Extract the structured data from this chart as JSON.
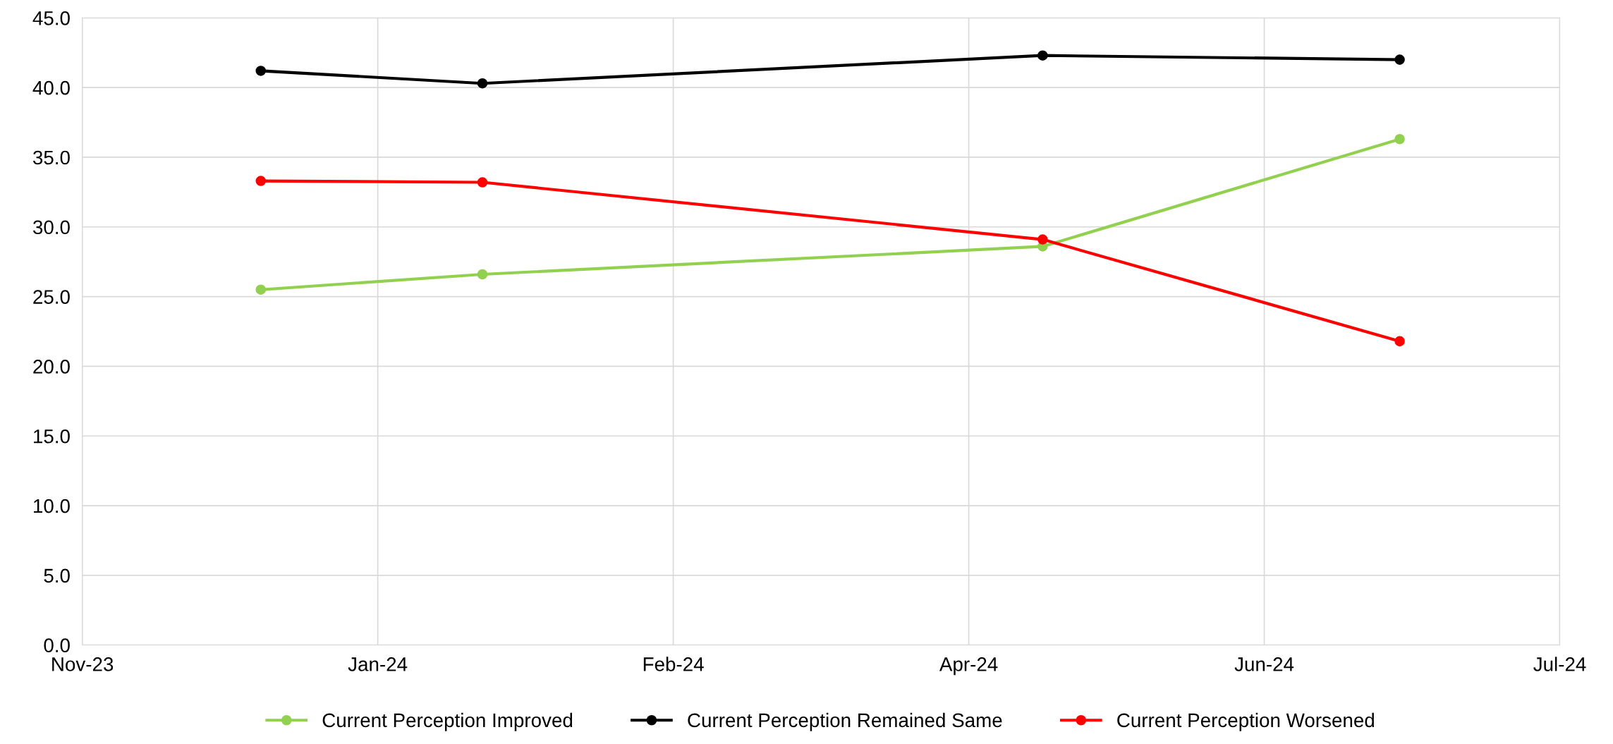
{
  "chart_data": {
    "type": "line",
    "x": [
      "2023-12-22",
      "2024-01-27",
      "2024-04-27",
      "2024-06-24"
    ],
    "series": [
      {
        "name": "Current Perception Improved",
        "color": "#92d050",
        "values": [
          25.5,
          26.6,
          28.6,
          36.3
        ]
      },
      {
        "name": "Current Perception Remained Same",
        "color": "#000000",
        "values": [
          41.2,
          40.3,
          42.3,
          42.0
        ]
      },
      {
        "name": "Current Perception Worsened",
        "color": "#ff0000",
        "values": [
          33.3,
          33.2,
          29.1,
          21.8
        ]
      }
    ],
    "xlim": [
      "2023-11-23",
      "2024-07-20"
    ],
    "xticks": [
      {
        "value": "2023-11-23",
        "label": "Nov-23"
      },
      {
        "value": "2024-01-10",
        "label": "Jan-24"
      },
      {
        "value": "2024-02-27",
        "label": "Feb-24"
      },
      {
        "value": "2024-04-15",
        "label": "Apr-24"
      },
      {
        "value": "2024-06-02",
        "label": "Jun-24"
      },
      {
        "value": "2024-07-20",
        "label": "Jul-24"
      }
    ],
    "ylim": [
      0,
      45
    ],
    "yticks": [
      {
        "value": 0,
        "label": "0.0"
      },
      {
        "value": 5,
        "label": "5.0"
      },
      {
        "value": 10,
        "label": "10.0"
      },
      {
        "value": 15,
        "label": "15.0"
      },
      {
        "value": 20,
        "label": "20.0"
      },
      {
        "value": 25,
        "label": "25.0"
      },
      {
        "value": 30,
        "label": "30.0"
      },
      {
        "value": 35,
        "label": "35.0"
      },
      {
        "value": 40,
        "label": "40.0"
      },
      {
        "value": 45,
        "label": "45.0"
      }
    ],
    "grid": true,
    "legend": "bottom",
    "marker": "circle",
    "line_style": "solid"
  }
}
